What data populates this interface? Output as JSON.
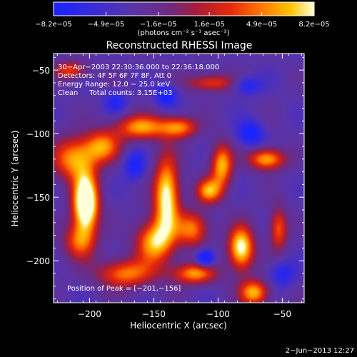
{
  "chart_data": {
    "type": "heatmap",
    "title": "Reconstructed RHESSI Image",
    "xlabel": "Heliocentric X (arcsec)",
    "ylabel": "Heliocentric Y (arcsec)",
    "xlim": [
      -228,
      -33
    ],
    "ylim": [
      -233,
      -37
    ],
    "x_ticks": [
      -200,
      -150,
      -100,
      -50
    ],
    "x_tick_labels": [
      "−200",
      "−150",
      "−100",
      "−50"
    ],
    "y_ticks": [
      -50,
      -100,
      -150,
      -200
    ],
    "y_tick_labels": [
      "−50",
      "−100",
      "−150",
      "−200"
    ],
    "colorbar": {
      "min": -8.2e-05,
      "max": 8.2e-05,
      "ticks": [
        -8.2e-05,
        -4.9e-05,
        -1.6e-05,
        1.6e-05,
        4.9e-05,
        8.2e-05
      ],
      "tick_labels": [
        "−8.2e−05",
        "−4.9e−05",
        "−1.6e−05",
        "1.6e−05",
        "4.9e−05",
        "8.2e−05"
      ],
      "unit_label": "(photons cm⁻² s⁻¹ asec⁻²)"
    },
    "annotations": [
      "30−Apr−2003 22:30:36.000 to 22:36:18.000",
      "Detectors: 4F 5F 6F 7F 8F, Att 0",
      "Energy Range: 12.0 − 25.0 keV",
      "Clean     Total counts: 3.15E+03"
    ],
    "peak_label": "Position of Peak = [−201,−156]",
    "peak": [
      -201,
      -156
    ],
    "background_level": 0.3,
    "sources": [
      {
        "x": -203,
        "y": -155,
        "sx": 7,
        "sy": 16,
        "amp": 1.0
      },
      {
        "x": -212,
        "y": -120,
        "sx": 12,
        "sy": 12,
        "amp": 0.55
      },
      {
        "x": -190,
        "y": -110,
        "sx": 10,
        "sy": 9,
        "amp": 0.5
      },
      {
        "x": -208,
        "y": -185,
        "sx": 9,
        "sy": 10,
        "amp": 0.42
      },
      {
        "x": -160,
        "y": -95,
        "sx": 14,
        "sy": 7,
        "amp": 0.55
      },
      {
        "x": -130,
        "y": -95,
        "sx": 10,
        "sy": 6,
        "amp": 0.5
      },
      {
        "x": -140,
        "y": -150,
        "sx": 7,
        "sy": 22,
        "amp": 0.75
      },
      {
        "x": -150,
        "y": -185,
        "sx": 10,
        "sy": 12,
        "amp": 0.6
      },
      {
        "x": -120,
        "y": -175,
        "sx": 9,
        "sy": 10,
        "amp": 0.5
      },
      {
        "x": -172,
        "y": -210,
        "sx": 16,
        "sy": 8,
        "amp": 0.5
      },
      {
        "x": -97,
        "y": -125,
        "sx": 6,
        "sy": 12,
        "amp": 0.6
      },
      {
        "x": -107,
        "y": -145,
        "sx": 7,
        "sy": 7,
        "amp": 0.55
      },
      {
        "x": -62,
        "y": -120,
        "sx": 10,
        "sy": 6,
        "amp": 0.6
      },
      {
        "x": -82,
        "y": -190,
        "sx": 7,
        "sy": 12,
        "amp": 0.75
      },
      {
        "x": -72,
        "y": -225,
        "sx": 8,
        "sy": 7,
        "amp": 0.6
      },
      {
        "x": -118,
        "y": -210,
        "sx": 12,
        "sy": 6,
        "amp": 0.55
      },
      {
        "x": -105,
        "y": -60,
        "sx": 14,
        "sy": 5,
        "amp": 0.4
      },
      {
        "x": -215,
        "y": -50,
        "sx": 9,
        "sy": 5,
        "amp": 0.4
      },
      {
        "x": -53,
        "y": -175,
        "sx": 5,
        "sy": 12,
        "amp": 0.45
      },
      {
        "x": -180,
        "y": -75,
        "sx": 6,
        "sy": 6,
        "amp": -0.25
      },
      {
        "x": -165,
        "y": -125,
        "sx": 6,
        "sy": 8,
        "amp": -0.3
      },
      {
        "x": -140,
        "y": -70,
        "sx": 6,
        "sy": 6,
        "amp": -0.35
      },
      {
        "x": -75,
        "y": -100,
        "sx": 7,
        "sy": 7,
        "amp": -0.35
      },
      {
        "x": -110,
        "y": -198,
        "sx": 5,
        "sy": 5,
        "amp": -0.5
      },
      {
        "x": -78,
        "y": -62,
        "sx": 8,
        "sy": 5,
        "amp": -0.3
      },
      {
        "x": -50,
        "y": -210,
        "sx": 7,
        "sy": 7,
        "amp": -0.25
      }
    ]
  },
  "footer_date": "2−Jun−2013 12:27"
}
